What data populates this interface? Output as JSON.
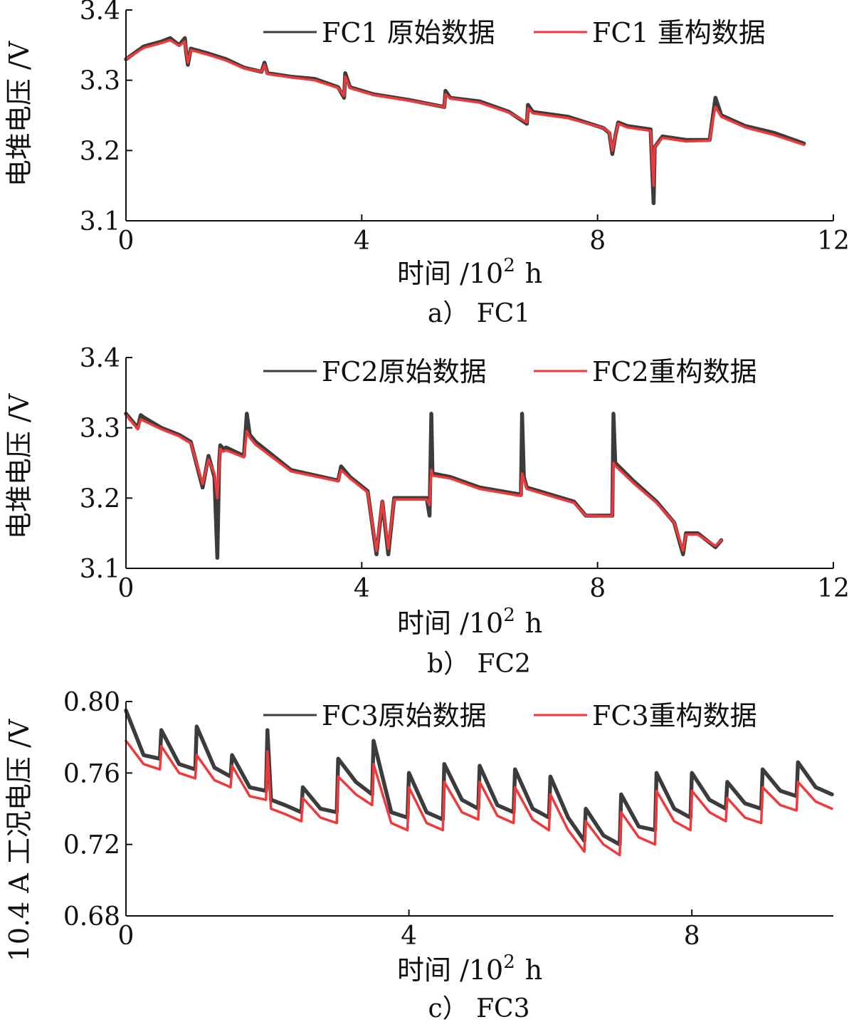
{
  "colors": {
    "raw": "#3c3c3c",
    "reconstructed": "#f0393b",
    "axis": "#111111"
  },
  "chart_data": [
    {
      "type": "line",
      "caption": "a） FC1",
      "xlabel_main": "时间 /10",
      "xlabel_sup": "2",
      "xlabel_unit": "h",
      "ylabel": "电堆电压 /V",
      "xlim": [
        0,
        12
      ],
      "ylim": [
        3.1,
        3.4
      ],
      "xticks": [
        0,
        4,
        8,
        12
      ],
      "xtick_labels": [
        "0",
        "4",
        "8",
        "12"
      ],
      "yticks": [
        3.1,
        3.2,
        3.3,
        3.4
      ],
      "ytick_labels": [
        "3.1",
        "3.2",
        "3.3",
        "3.4"
      ],
      "legend_position": "top-right",
      "series": [
        {
          "name": "FC1原始数据",
          "legend_label": "FC1 原始数据",
          "color": "#3c3c3c",
          "x": [
            0,
            0.3,
            0.6,
            0.75,
            0.9,
            1.0,
            1.02,
            1.05,
            1.1,
            1.4,
            1.7,
            2.0,
            2.3,
            2.35,
            2.4,
            2.8,
            3.2,
            3.6,
            3.7,
            3.72,
            3.8,
            4.2,
            4.8,
            5.4,
            5.42,
            5.5,
            6.0,
            6.5,
            6.8,
            6.82,
            6.9,
            7.5,
            8.1,
            8.2,
            8.25,
            8.3,
            8.35,
            8.5,
            8.9,
            8.95,
            8.97,
            9.1,
            9.5,
            9.9,
            9.95,
            10.0,
            10.1,
            10.5,
            11.0,
            11.5
          ],
          "y": [
            3.33,
            3.348,
            3.355,
            3.36,
            3.35,
            3.36,
            3.34,
            3.322,
            3.345,
            3.338,
            3.33,
            3.318,
            3.312,
            3.325,
            3.31,
            3.305,
            3.302,
            3.29,
            3.275,
            3.31,
            3.29,
            3.28,
            3.272,
            3.262,
            3.285,
            3.275,
            3.27,
            3.255,
            3.238,
            3.265,
            3.255,
            3.248,
            3.232,
            3.225,
            3.195,
            3.22,
            3.24,
            3.235,
            3.23,
            3.125,
            3.205,
            3.22,
            3.215,
            3.215,
            3.245,
            3.275,
            3.25,
            3.235,
            3.225,
            3.21
          ]
        },
        {
          "name": "FC1重构数据",
          "legend_label": "FC1 重构数据",
          "color": "#f0393b",
          "x": [
            0,
            0.3,
            0.6,
            0.75,
            0.9,
            1.0,
            1.02,
            1.05,
            1.1,
            1.4,
            1.7,
            2.0,
            2.3,
            2.35,
            2.4,
            2.8,
            3.2,
            3.6,
            3.7,
            3.72,
            3.8,
            4.2,
            4.8,
            5.4,
            5.42,
            5.5,
            6.0,
            6.5,
            6.8,
            6.82,
            6.9,
            7.5,
            8.1,
            8.2,
            8.25,
            8.3,
            8.35,
            8.5,
            8.9,
            8.95,
            8.97,
            9.1,
            9.5,
            9.9,
            9.95,
            10.0,
            10.1,
            10.5,
            11.0,
            11.5
          ],
          "y": [
            3.33,
            3.346,
            3.353,
            3.357,
            3.349,
            3.355,
            3.34,
            3.325,
            3.343,
            3.336,
            3.328,
            3.317,
            3.312,
            3.322,
            3.309,
            3.304,
            3.3,
            3.289,
            3.278,
            3.305,
            3.289,
            3.279,
            3.271,
            3.262,
            3.28,
            3.274,
            3.268,
            3.254,
            3.24,
            3.26,
            3.253,
            3.246,
            3.232,
            3.226,
            3.2,
            3.22,
            3.238,
            3.233,
            3.228,
            3.15,
            3.205,
            3.218,
            3.213,
            3.214,
            3.24,
            3.262,
            3.248,
            3.233,
            3.222,
            3.208
          ]
        }
      ]
    },
    {
      "type": "line",
      "caption": "b） FC2",
      "xlabel_main": "时间 /10",
      "xlabel_sup": "2",
      "xlabel_unit": "h",
      "ylabel": "电堆电压 /V",
      "xlim": [
        0,
        12
      ],
      "ylim": [
        3.1,
        3.4
      ],
      "xticks": [
        0,
        4,
        8,
        12
      ],
      "xtick_labels": [
        "0",
        "4",
        "8",
        "12"
      ],
      "yticks": [
        3.1,
        3.2,
        3.3,
        3.4
      ],
      "ytick_labels": [
        "3.1",
        "3.2",
        "3.3",
        "3.4"
      ],
      "legend_position": "top-right",
      "series": [
        {
          "name": "FC2原始数据",
          "legend_label": "FC2原始数据",
          "color": "#3c3c3c",
          "x": [
            0,
            0.2,
            0.25,
            0.3,
            0.6,
            0.9,
            1.1,
            1.3,
            1.4,
            1.5,
            1.55,
            1.58,
            1.6,
            1.65,
            1.7,
            2.0,
            2.05,
            2.1,
            2.2,
            2.8,
            3.6,
            3.65,
            3.8,
            4.1,
            4.25,
            4.35,
            4.45,
            4.55,
            4.7,
            5.1,
            5.15,
            5.18,
            5.2,
            5.5,
            6.0,
            6.7,
            6.72,
            6.75,
            6.8,
            7.2,
            7.6,
            7.8,
            8.2,
            8.25,
            8.27,
            8.3,
            8.6,
            9.0,
            9.3,
            9.45,
            9.5,
            9.7,
            10.0,
            10.1
          ],
          "y": [
            3.32,
            3.3,
            3.318,
            3.315,
            3.3,
            3.29,
            3.28,
            3.215,
            3.26,
            3.23,
            3.115,
            3.25,
            3.275,
            3.27,
            3.272,
            3.26,
            3.32,
            3.29,
            3.28,
            3.24,
            3.225,
            3.245,
            3.23,
            3.21,
            3.12,
            3.195,
            3.12,
            3.2,
            3.2,
            3.2,
            3.175,
            3.32,
            3.235,
            3.23,
            3.215,
            3.205,
            3.32,
            3.23,
            3.215,
            3.205,
            3.195,
            3.175,
            3.175,
            3.175,
            3.32,
            3.25,
            3.225,
            3.195,
            3.165,
            3.12,
            3.15,
            3.15,
            3.13,
            3.14
          ]
        },
        {
          "name": "FC2重构数据",
          "legend_label": "FC2重构数据",
          "color": "#f0393b",
          "x": [
            0,
            0.2,
            0.25,
            0.3,
            0.6,
            0.9,
            1.1,
            1.3,
            1.4,
            1.5,
            1.55,
            1.58,
            1.6,
            1.65,
            1.7,
            2.0,
            2.05,
            2.1,
            2.2,
            2.8,
            3.6,
            3.65,
            3.8,
            4.1,
            4.25,
            4.35,
            4.45,
            4.55,
            4.7,
            5.1,
            5.15,
            5.18,
            5.2,
            5.5,
            6.0,
            6.7,
            6.72,
            6.75,
            6.8,
            7.2,
            7.6,
            7.8,
            8.2,
            8.25,
            8.27,
            8.3,
            8.6,
            9.0,
            9.3,
            9.45,
            9.5,
            9.7,
            10.0,
            10.1
          ],
          "y": [
            3.318,
            3.298,
            3.312,
            3.31,
            3.298,
            3.288,
            3.278,
            3.22,
            3.255,
            3.235,
            3.2,
            3.245,
            3.27,
            3.266,
            3.268,
            3.258,
            3.295,
            3.286,
            3.276,
            3.238,
            3.224,
            3.24,
            3.228,
            3.208,
            3.125,
            3.195,
            3.128,
            3.198,
            3.198,
            3.198,
            3.19,
            3.24,
            3.232,
            3.228,
            3.213,
            3.203,
            3.235,
            3.226,
            3.213,
            3.203,
            3.193,
            3.175,
            3.174,
            3.175,
            3.25,
            3.246,
            3.222,
            3.193,
            3.165,
            3.125,
            3.148,
            3.148,
            3.132,
            3.14
          ]
        }
      ]
    },
    {
      "type": "line",
      "caption": "c） FC3",
      "xlabel_main": "时间 /10",
      "xlabel_sup": "2",
      "xlabel_unit": "h",
      "ylabel": "10.4 A 工况电压 /V",
      "xlim": [
        0,
        10
      ],
      "ylim": [
        0.68,
        0.8
      ],
      "xticks": [
        0,
        4,
        8
      ],
      "xtick_labels": [
        "0",
        "4",
        "8"
      ],
      "yticks": [
        0.68,
        0.72,
        0.76,
        0.8
      ],
      "ytick_labels": [
        "0.68",
        "0.72",
        "0.76",
        "0.80"
      ],
      "legend_position": "top-right",
      "series": [
        {
          "name": "FC3原始数据",
          "legend_label": "FC3原始数据",
          "color": "#3c3c3c",
          "x": [
            0,
            0.25,
            0.48,
            0.5,
            0.75,
            0.98,
            1.0,
            1.25,
            1.48,
            1.5,
            1.75,
            1.98,
            2.0,
            2.05,
            2.25,
            2.48,
            2.5,
            2.75,
            2.98,
            3.0,
            3.25,
            3.48,
            3.5,
            3.75,
            3.98,
            4.0,
            4.25,
            4.48,
            4.5,
            4.75,
            4.98,
            5.0,
            5.25,
            5.48,
            5.5,
            5.75,
            5.98,
            6.0,
            6.25,
            6.48,
            6.5,
            6.75,
            6.98,
            7.0,
            7.25,
            7.48,
            7.5,
            7.75,
            7.98,
            8.0,
            8.25,
            8.48,
            8.5,
            8.75,
            8.98,
            9.0,
            9.25,
            9.48,
            9.5,
            9.75,
            9.98
          ],
          "y": [
            0.795,
            0.77,
            0.768,
            0.784,
            0.765,
            0.762,
            0.786,
            0.763,
            0.758,
            0.77,
            0.752,
            0.75,
            0.784,
            0.745,
            0.742,
            0.738,
            0.752,
            0.74,
            0.738,
            0.768,
            0.755,
            0.748,
            0.778,
            0.738,
            0.735,
            0.76,
            0.738,
            0.734,
            0.765,
            0.745,
            0.74,
            0.764,
            0.742,
            0.738,
            0.762,
            0.74,
            0.735,
            0.758,
            0.735,
            0.722,
            0.74,
            0.725,
            0.72,
            0.748,
            0.73,
            0.728,
            0.76,
            0.74,
            0.735,
            0.76,
            0.745,
            0.74,
            0.755,
            0.743,
            0.74,
            0.762,
            0.75,
            0.747,
            0.766,
            0.752,
            0.748
          ]
        },
        {
          "name": "FC3重构数据",
          "legend_label": "FC3重构数据",
          "color": "#f0393b",
          "x": [
            0,
            0.25,
            0.48,
            0.5,
            0.75,
            0.98,
            1.0,
            1.25,
            1.48,
            1.5,
            1.75,
            1.98,
            2.0,
            2.05,
            2.25,
            2.48,
            2.5,
            2.75,
            2.98,
            3.0,
            3.25,
            3.48,
            3.5,
            3.75,
            3.98,
            4.0,
            4.25,
            4.48,
            4.5,
            4.75,
            4.98,
            5.0,
            5.25,
            5.48,
            5.5,
            5.75,
            5.98,
            6.0,
            6.25,
            6.48,
            6.5,
            6.75,
            6.98,
            7.0,
            7.25,
            7.48,
            7.5,
            7.75,
            7.98,
            8.0,
            8.25,
            8.48,
            8.5,
            8.75,
            8.98,
            9.0,
            9.25,
            9.48,
            9.5,
            9.75,
            9.98
          ],
          "y": [
            0.778,
            0.765,
            0.762,
            0.775,
            0.76,
            0.757,
            0.77,
            0.756,
            0.752,
            0.764,
            0.747,
            0.745,
            0.772,
            0.74,
            0.737,
            0.733,
            0.746,
            0.735,
            0.732,
            0.758,
            0.748,
            0.742,
            0.765,
            0.732,
            0.728,
            0.752,
            0.732,
            0.728,
            0.755,
            0.738,
            0.734,
            0.755,
            0.736,
            0.732,
            0.752,
            0.734,
            0.728,
            0.748,
            0.728,
            0.716,
            0.733,
            0.72,
            0.714,
            0.738,
            0.724,
            0.72,
            0.75,
            0.733,
            0.728,
            0.75,
            0.738,
            0.733,
            0.746,
            0.735,
            0.732,
            0.752,
            0.742,
            0.739,
            0.755,
            0.744,
            0.74
          ]
        }
      ]
    }
  ]
}
